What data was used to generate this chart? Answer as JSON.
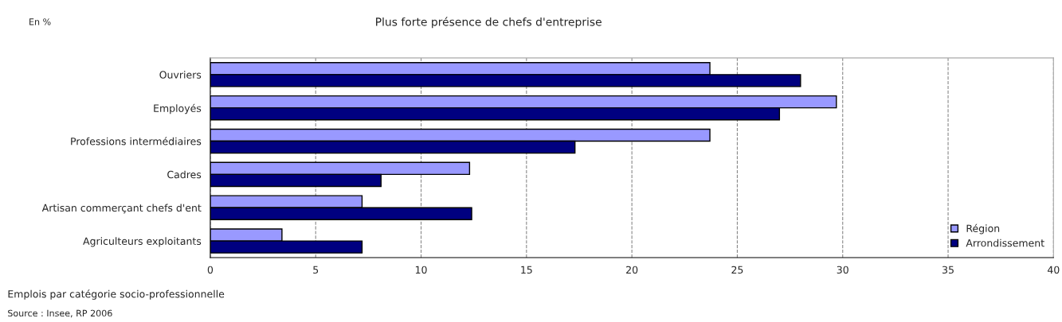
{
  "chart_data": {
    "type": "bar",
    "orientation": "horizontal",
    "title": "Plus forte présence de chefs d'entreprise",
    "subtitle": "En %",
    "xlabel": "Emplois par catégorie socio-professionnelle",
    "annotations": [
      "Source : Insee, RP 2006"
    ],
    "categories": [
      "Ouvriers",
      "Employés",
      "Professions intermédiaires",
      "Cadres",
      "Artisan commerçant chefs d'ent",
      "Agriculteurs exploitants"
    ],
    "series": [
      {
        "name": "Région",
        "color": "#9999ff",
        "values": [
          23.7,
          29.7,
          23.7,
          12.3,
          7.2,
          3.4
        ]
      },
      {
        "name": "Arrondissement",
        "color": "#000080",
        "values": [
          28.0,
          27.0,
          17.3,
          8.1,
          12.4,
          7.2
        ]
      }
    ],
    "xlim": [
      0,
      40
    ],
    "xticks": [
      0,
      5,
      10,
      15,
      20,
      25,
      30,
      35,
      40
    ],
    "grid": "x",
    "legend": "bottom right"
  }
}
